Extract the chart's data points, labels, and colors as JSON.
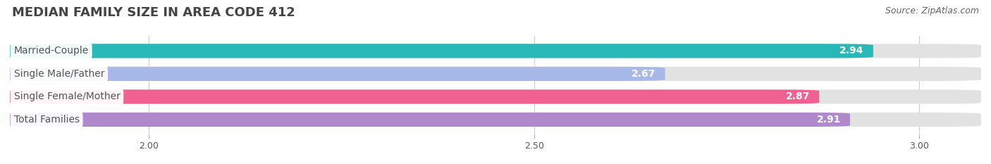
{
  "title": "MEDIAN FAMILY SIZE IN AREA CODE 412",
  "source": "Source: ZipAtlas.com",
  "categories": [
    "Married-Couple",
    "Single Male/Father",
    "Single Female/Mother",
    "Total Families"
  ],
  "values": [
    2.94,
    2.67,
    2.87,
    2.91
  ],
  "bar_colors": [
    "#29b8b8",
    "#a8b8e8",
    "#f06090",
    "#b088cc"
  ],
  "bar_bg_color": "#e2e2e2",
  "xmin": 1.82,
  "xmax": 3.08,
  "xticks": [
    2.0,
    2.5,
    3.0
  ],
  "xtick_labels": [
    "2.00",
    "2.50",
    "3.00"
  ],
  "label_color": "#555555",
  "value_color": "#ffffff",
  "title_fontsize": 13,
  "source_fontsize": 9,
  "label_fontsize": 10,
  "value_fontsize": 10,
  "bar_height": 0.62,
  "background_color": "#ffffff"
}
